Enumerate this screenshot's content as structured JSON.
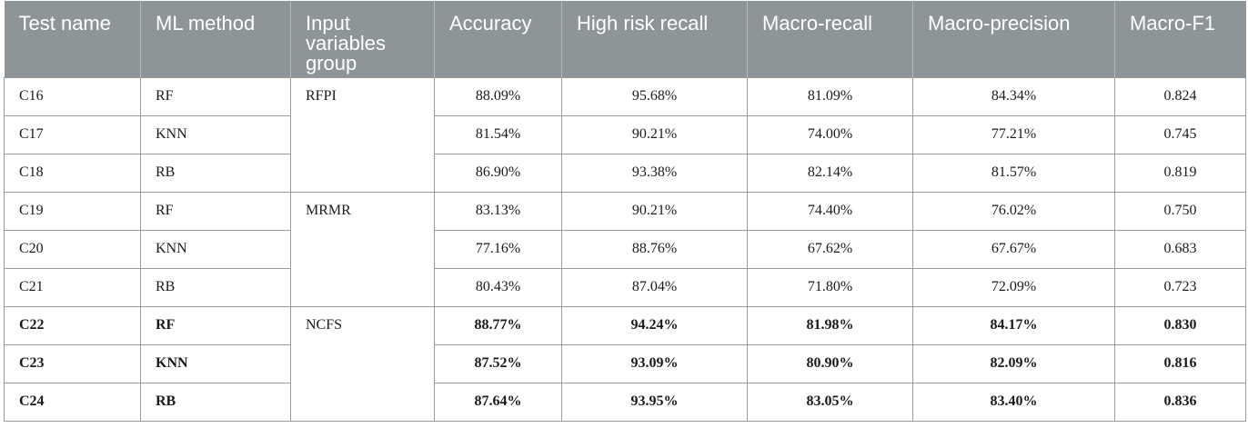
{
  "table": {
    "headers": [
      "Test name",
      "ML method",
      "Input variables group",
      "Accuracy",
      "High risk recall",
      "Macro-recall",
      "Macro-precision",
      "Macro-F1"
    ],
    "groups": [
      {
        "name": "RFPI",
        "rows": [
          {
            "test": "C16",
            "method": "RF",
            "accuracy": "88.09%",
            "hr_recall": "95.68%",
            "macro_recall": "81.09%",
            "macro_precision": "84.34%",
            "macro_f1": "0.824"
          },
          {
            "test": "C17",
            "method": "KNN",
            "accuracy": "81.54%",
            "hr_recall": "90.21%",
            "macro_recall": "74.00%",
            "macro_precision": "77.21%",
            "macro_f1": "0.745"
          },
          {
            "test": "C18",
            "method": "RB",
            "accuracy": "86.90%",
            "hr_recall": "93.38%",
            "macro_recall": "82.14%",
            "macro_precision": "81.57%",
            "macro_f1": "0.819"
          }
        ]
      },
      {
        "name": "MRMR",
        "rows": [
          {
            "test": "C19",
            "method": "RF",
            "accuracy": "83.13%",
            "hr_recall": "90.21%",
            "macro_recall": "74.40%",
            "macro_precision": "76.02%",
            "macro_f1": "0.750"
          },
          {
            "test": "C20",
            "method": "KNN",
            "accuracy": "77.16%",
            "hr_recall": "88.76%",
            "macro_recall": "67.62%",
            "macro_precision": "67.67%",
            "macro_f1": "0.683"
          },
          {
            "test": "C21",
            "method": "RB",
            "accuracy": "80.43%",
            "hr_recall": "87.04%",
            "macro_recall": "71.80%",
            "macro_precision": "72.09%",
            "macro_f1": "0.723"
          }
        ]
      },
      {
        "name": "NCFS",
        "rows": [
          {
            "test": "C22",
            "method": "RF",
            "accuracy": "88.77%",
            "hr_recall": "94.24%",
            "macro_recall": "81.98%",
            "macro_precision": "84.17%",
            "macro_f1": "0.830"
          },
          {
            "test": "C23",
            "method": "KNN",
            "accuracy": "87.52%",
            "hr_recall": "93.09%",
            "macro_recall": "80.90%",
            "macro_precision": "82.09%",
            "macro_f1": "0.816"
          },
          {
            "test": "C24",
            "method": "RB",
            "accuracy": "87.64%",
            "hr_recall": "93.95%",
            "macro_recall": "83.05%",
            "macro_precision": "83.40%",
            "macro_f1": "0.836"
          }
        ]
      }
    ],
    "bold_group": "NCFS"
  }
}
